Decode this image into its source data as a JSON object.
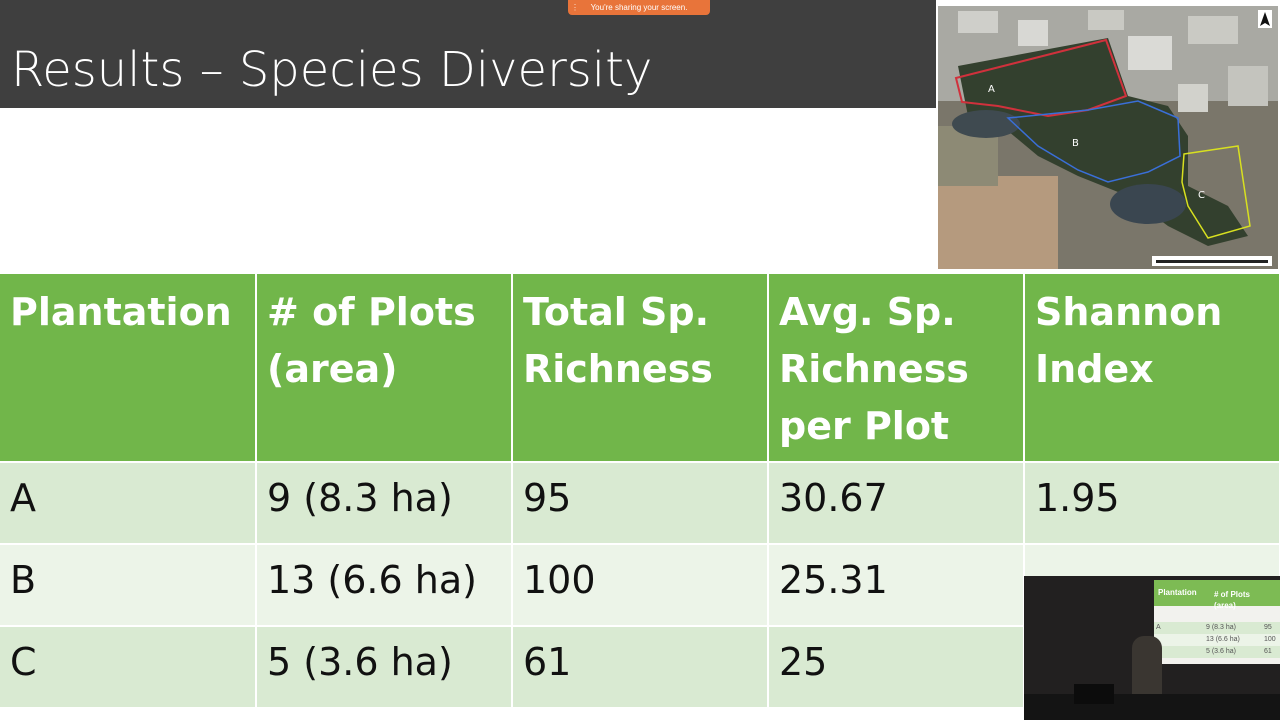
{
  "slide": {
    "title": "Results – Species Diversity"
  },
  "share_banner": {
    "text": "You're sharing your screen."
  },
  "map": {
    "labels": [
      "A",
      "B",
      "C"
    ],
    "colors": {
      "A": "#d0313c",
      "B": "#3a6fd8",
      "C": "#d8e020"
    }
  },
  "table": {
    "headers": [
      "Plantation",
      "# of Plots (area)",
      "Total Sp. Richness",
      "Avg. Sp. Richness per Plot",
      "Shannon Index"
    ],
    "rows": [
      [
        "A",
        "9 (8.3 ha)",
        "95",
        "30.67",
        "1.95"
      ],
      [
        "B",
        "13 (6.6 ha)",
        "100",
        "25.31",
        ""
      ],
      [
        "C",
        "5 (3.6 ha)",
        "61",
        "25",
        ""
      ]
    ]
  },
  "webcam": {
    "headers": [
      "Plantation",
      "# of Plots (area)"
    ],
    "rows": [
      [
        "A",
        "9 (8.3 ha)",
        "95"
      ],
      [
        "",
        "13 (6.6 ha)",
        "100"
      ],
      [
        "",
        "5 (3.6 ha)",
        "61"
      ]
    ]
  },
  "colors": {
    "title_bg": "#3f3f3f",
    "header_green": "#71b64a",
    "row_light": "#d9ead2",
    "row_lighter": "#ecf4e8",
    "banner_orange": "#e8743a"
  }
}
